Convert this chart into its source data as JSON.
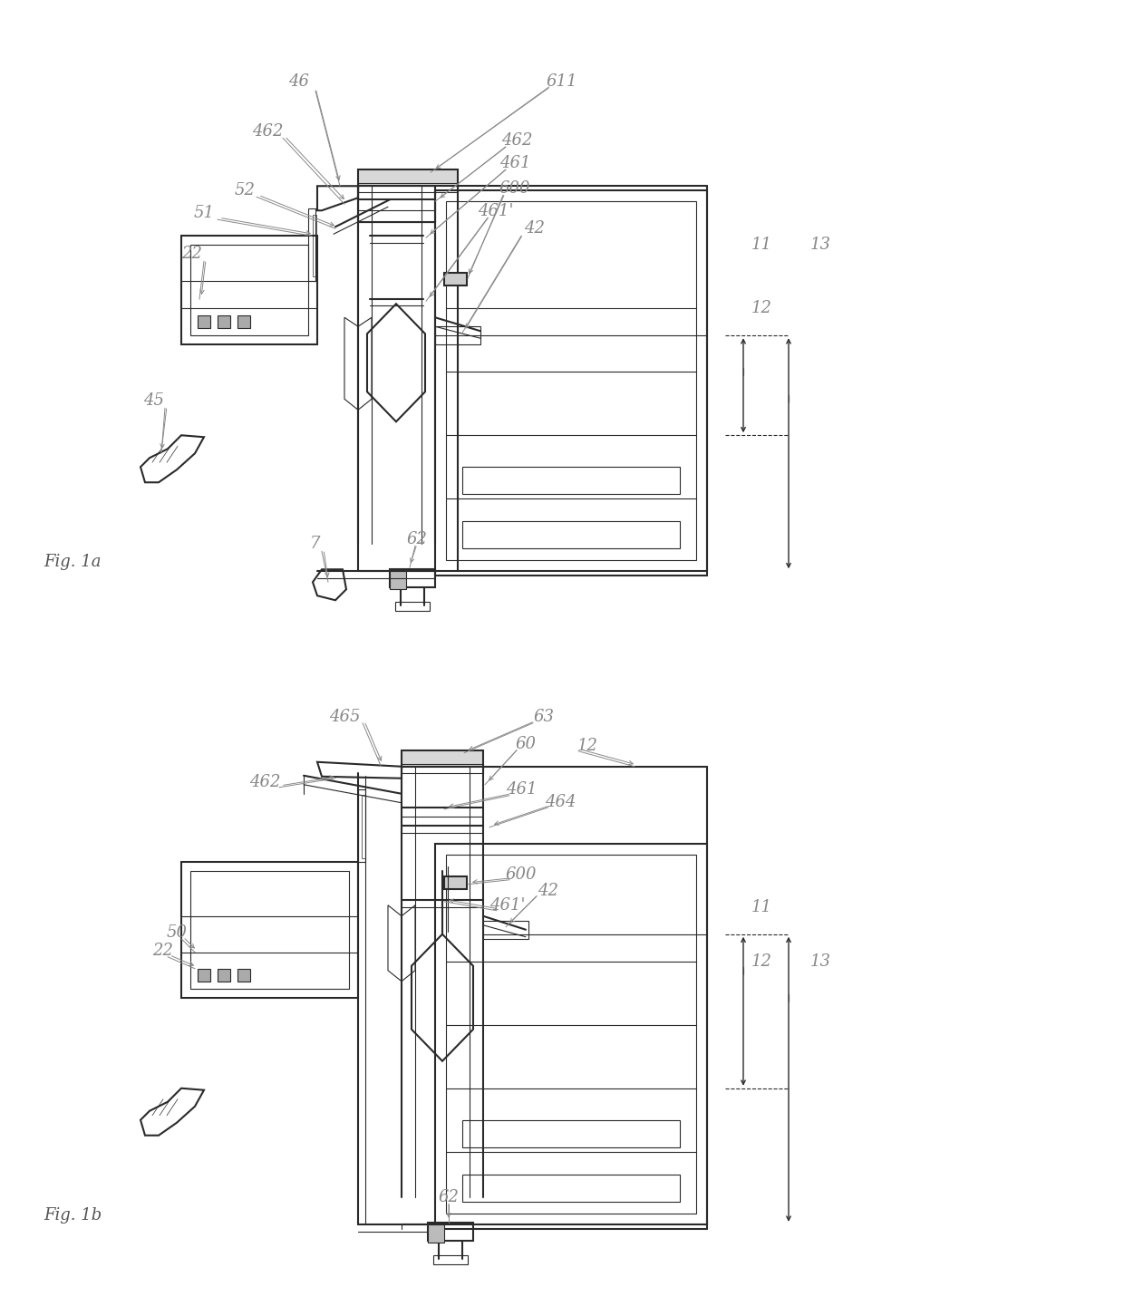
{
  "fig_width": 12.4,
  "fig_height": 14.41,
  "dpi": 100,
  "bg_color": "#ffffff",
  "lc": "#2a2a2a",
  "lc_light": "#555555",
  "label_color": "#888888",
  "lw_main": 1.5,
  "lw_thin": 0.8,
  "lw_xtra": 0.5,
  "fig1a_title": "Fig. 1a",
  "fig1b_title": "Fig. 1b"
}
